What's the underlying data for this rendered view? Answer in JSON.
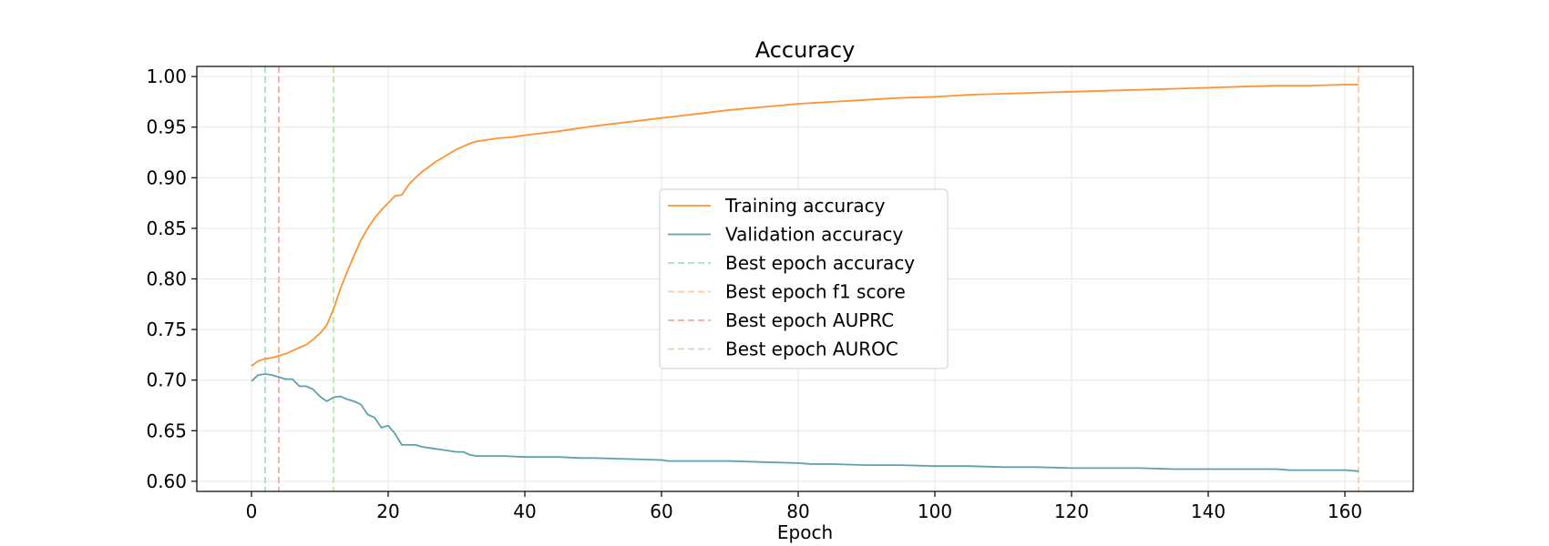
{
  "chart_data": {
    "type": "line",
    "title": "Accuracy",
    "xlabel": "Epoch",
    "ylabel": "",
    "xlim": [
      -8,
      170
    ],
    "ylim": [
      0.59,
      1.01
    ],
    "xticks": [
      0,
      20,
      40,
      60,
      80,
      100,
      120,
      140,
      160
    ],
    "yticks": [
      0.6,
      0.65,
      0.7,
      0.75,
      0.8,
      0.85,
      0.9,
      0.95,
      1.0
    ],
    "grid": true,
    "legend_position": "center",
    "series": [
      {
        "name": "Training accuracy",
        "color": "#ff9233",
        "style": "solid",
        "points": [
          [
            0,
            0.714
          ],
          [
            1,
            0.719
          ],
          [
            2,
            0.721
          ],
          [
            3,
            0.722
          ],
          [
            4,
            0.724
          ],
          [
            5,
            0.726
          ],
          [
            6,
            0.729
          ],
          [
            7,
            0.732
          ],
          [
            8,
            0.735
          ],
          [
            9,
            0.74
          ],
          [
            10,
            0.746
          ],
          [
            11,
            0.754
          ],
          [
            12,
            0.77
          ],
          [
            13,
            0.79
          ],
          [
            14,
            0.807
          ],
          [
            15,
            0.823
          ],
          [
            16,
            0.838
          ],
          [
            17,
            0.85
          ],
          [
            18,
            0.86
          ],
          [
            19,
            0.868
          ],
          [
            20,
            0.875
          ],
          [
            21,
            0.882
          ],
          [
            22,
            0.883
          ],
          [
            23,
            0.893
          ],
          [
            24,
            0.9
          ],
          [
            25,
            0.906
          ],
          [
            26,
            0.911
          ],
          [
            27,
            0.916
          ],
          [
            28,
            0.92
          ],
          [
            29,
            0.924
          ],
          [
            30,
            0.928
          ],
          [
            31,
            0.931
          ],
          [
            32,
            0.934
          ],
          [
            33,
            0.936
          ],
          [
            34,
            0.937
          ],
          [
            35,
            0.938
          ],
          [
            36,
            0.939
          ],
          [
            38,
            0.94
          ],
          [
            40,
            0.942
          ],
          [
            45,
            0.946
          ],
          [
            50,
            0.951
          ],
          [
            55,
            0.955
          ],
          [
            60,
            0.959
          ],
          [
            65,
            0.963
          ],
          [
            70,
            0.967
          ],
          [
            75,
            0.97
          ],
          [
            80,
            0.973
          ],
          [
            85,
            0.975
          ],
          [
            90,
            0.977
          ],
          [
            95,
            0.979
          ],
          [
            100,
            0.98
          ],
          [
            105,
            0.982
          ],
          [
            110,
            0.983
          ],
          [
            115,
            0.984
          ],
          [
            120,
            0.985
          ],
          [
            125,
            0.986
          ],
          [
            130,
            0.987
          ],
          [
            135,
            0.988
          ],
          [
            140,
            0.989
          ],
          [
            145,
            0.99
          ],
          [
            150,
            0.991
          ],
          [
            155,
            0.991
          ],
          [
            160,
            0.992
          ],
          [
            162,
            0.992
          ]
        ]
      },
      {
        "name": "Validation accuracy",
        "color": "#5fa0ad",
        "style": "solid",
        "points": [
          [
            0,
            0.699
          ],
          [
            1,
            0.705
          ],
          [
            2,
            0.706
          ],
          [
            3,
            0.705
          ],
          [
            4,
            0.703
          ],
          [
            5,
            0.701
          ],
          [
            6,
            0.701
          ],
          [
            7,
            0.694
          ],
          [
            8,
            0.694
          ],
          [
            9,
            0.691
          ],
          [
            10,
            0.684
          ],
          [
            11,
            0.679
          ],
          [
            12,
            0.683
          ],
          [
            13,
            0.684
          ],
          [
            14,
            0.681
          ],
          [
            15,
            0.679
          ],
          [
            16,
            0.676
          ],
          [
            17,
            0.666
          ],
          [
            18,
            0.663
          ],
          [
            19,
            0.653
          ],
          [
            20,
            0.655
          ],
          [
            21,
            0.647
          ],
          [
            22,
            0.636
          ],
          [
            23,
            0.636
          ],
          [
            24,
            0.636
          ],
          [
            25,
            0.634
          ],
          [
            26,
            0.633
          ],
          [
            27,
            0.632
          ],
          [
            28,
            0.631
          ],
          [
            29,
            0.63
          ],
          [
            30,
            0.629
          ],
          [
            31,
            0.629
          ],
          [
            32,
            0.626
          ],
          [
            33,
            0.625
          ],
          [
            35,
            0.625
          ],
          [
            37,
            0.625
          ],
          [
            40,
            0.624
          ],
          [
            43,
            0.624
          ],
          [
            45,
            0.624
          ],
          [
            48,
            0.623
          ],
          [
            50,
            0.623
          ],
          [
            55,
            0.622
          ],
          [
            60,
            0.621
          ],
          [
            61,
            0.62
          ],
          [
            65,
            0.62
          ],
          [
            70,
            0.62
          ],
          [
            75,
            0.619
          ],
          [
            80,
            0.618
          ],
          [
            82,
            0.617
          ],
          [
            85,
            0.617
          ],
          [
            90,
            0.616
          ],
          [
            95,
            0.616
          ],
          [
            100,
            0.615
          ],
          [
            105,
            0.615
          ],
          [
            110,
            0.614
          ],
          [
            115,
            0.614
          ],
          [
            120,
            0.613
          ],
          [
            125,
            0.613
          ],
          [
            130,
            0.613
          ],
          [
            135,
            0.612
          ],
          [
            140,
            0.612
          ],
          [
            145,
            0.612
          ],
          [
            150,
            0.612
          ],
          [
            152,
            0.611
          ],
          [
            155,
            0.611
          ],
          [
            160,
            0.611
          ],
          [
            162,
            0.61
          ]
        ]
      }
    ],
    "vlines": [
      {
        "name": "Best epoch accuracy",
        "x": 2,
        "color": "#a8dcc9"
      },
      {
        "name": "Best epoch f1 score",
        "x": 162,
        "color": "#ffc8a0"
      },
      {
        "name": "Best epoch AUPRC",
        "x": 4,
        "color": "#f4a9a3"
      },
      {
        "name": "Best epoch AUROC",
        "x": 12,
        "color": "#bfe8a8"
      }
    ],
    "legend": [
      {
        "label": "Training accuracy",
        "color": "#ff9233",
        "dashed": false
      },
      {
        "label": "Validation accuracy",
        "color": "#5fa0ad",
        "dashed": false
      },
      {
        "label": "Best epoch accuracy",
        "color": "#a8dcc9",
        "dashed": true
      },
      {
        "label": "Best epoch f1 score",
        "color": "#ffc8a0",
        "dashed": true
      },
      {
        "label": "Best epoch AUPRC",
        "color": "#f4a9a3",
        "dashed": true
      },
      {
        "label": "Best epoch AUROC",
        "color": "#bfe8a8",
        "dashed": true
      }
    ]
  }
}
